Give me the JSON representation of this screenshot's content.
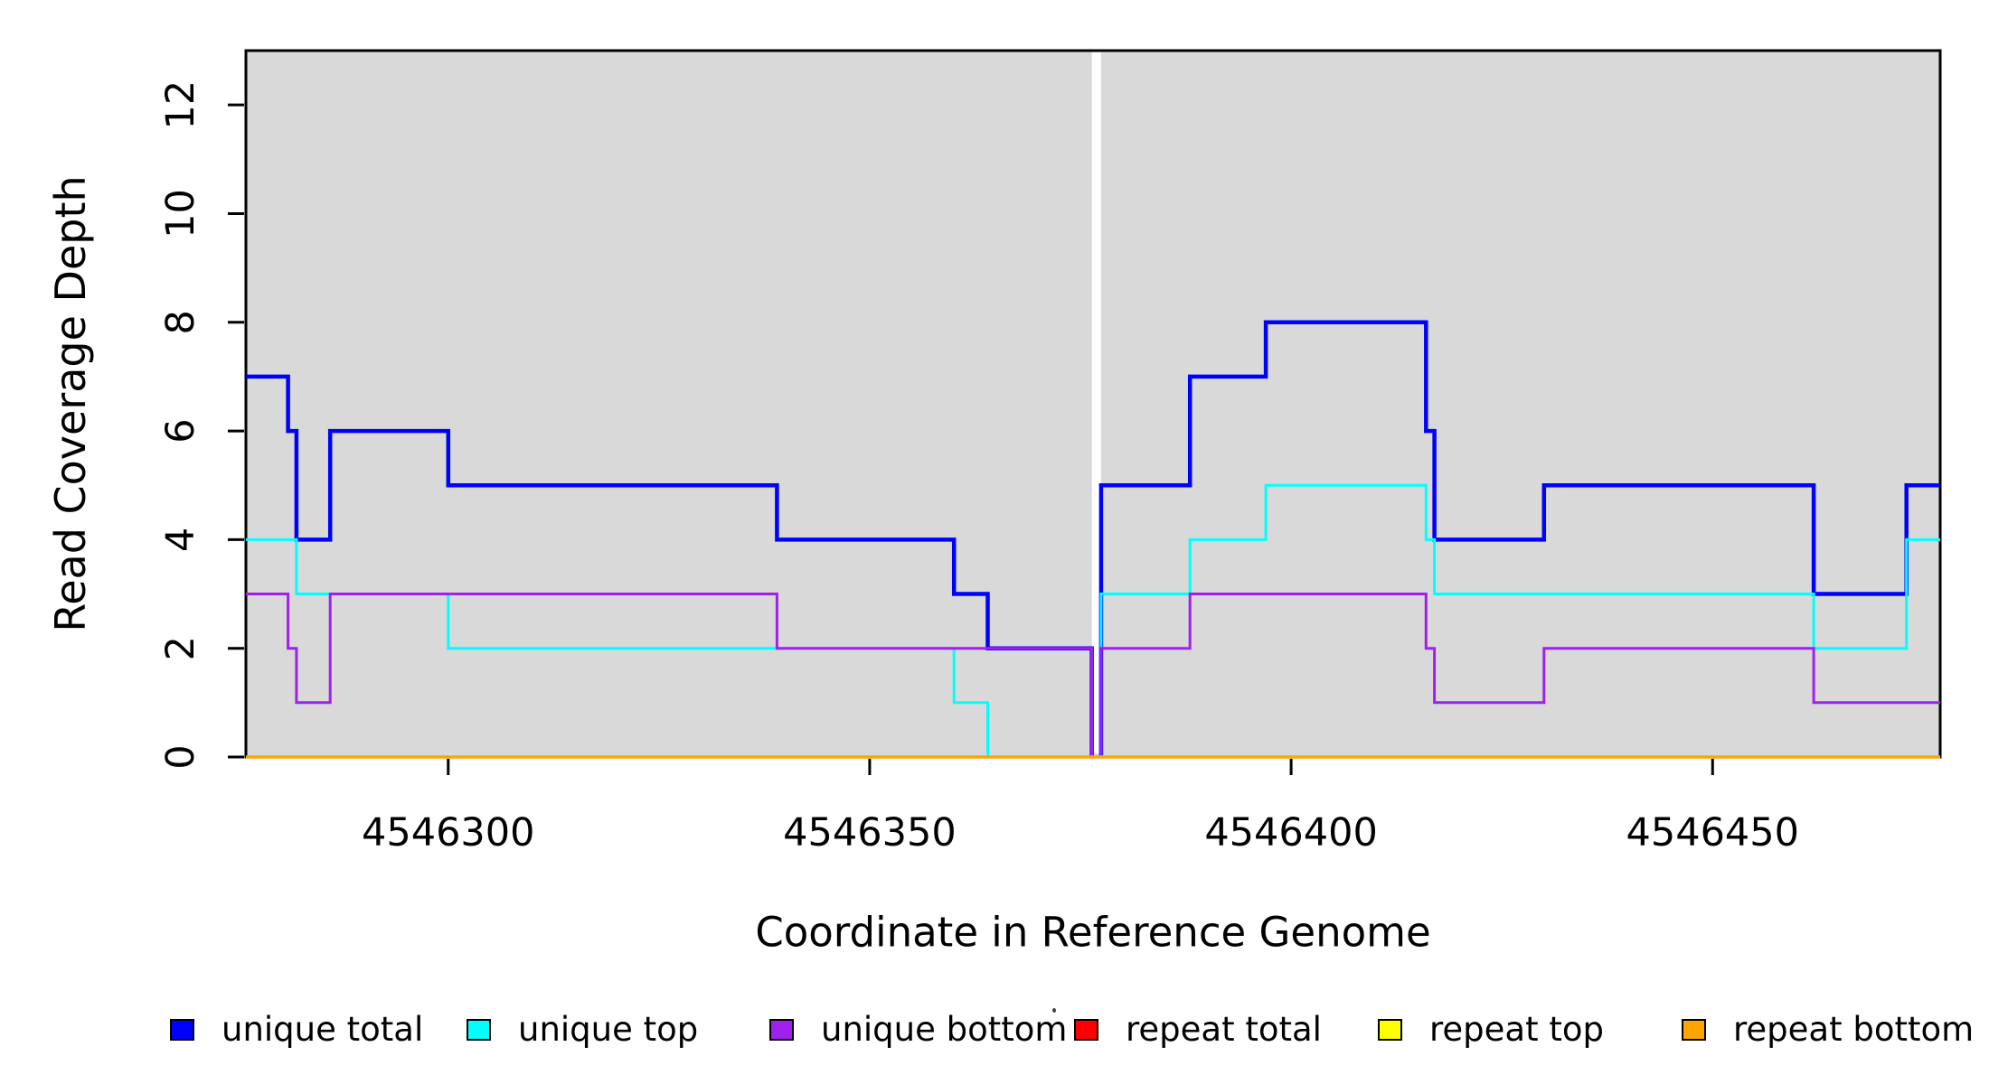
{
  "chart_data": {
    "type": "line",
    "subtype": "step",
    "title": "",
    "xlabel": "Coordinate in Reference Genome",
    "ylabel": "Read Coverage Depth",
    "xlim": [
      4546276,
      4546477
    ],
    "ylim": [
      0,
      13
    ],
    "x_ticks": [
      4546300,
      4546350,
      4546400,
      4546450
    ],
    "y_ticks": [
      0,
      2,
      4,
      6,
      8,
      10,
      12
    ],
    "plot_bg": "#D9D9D9",
    "grid": "off",
    "legend_position": "bottom",
    "gap": {
      "from": 4546376.35,
      "to": 4546377.45
    },
    "series": [
      {
        "name": "unique total",
        "key": "unique-total",
        "color": "#0000FF",
        "lw": 4.5,
        "blocks": [
          {
            "points": [
              [
                4546276,
                7
              ],
              [
                4546281,
                6
              ],
              [
                4546282,
                4
              ],
              [
                4546286,
                6
              ],
              [
                4546300,
                5
              ],
              [
                4546339,
                4
              ],
              [
                4546360,
                3
              ],
              [
                4546364,
                2
              ]
            ],
            "end": 4546376.35,
            "endAtZero": true
          },
          {
            "points": [
              [
                4546377.45,
                5
              ],
              [
                4546388,
                7
              ],
              [
                4546397,
                8
              ],
              [
                4546416,
                6
              ],
              [
                4546417,
                4
              ],
              [
                4546430,
                5
              ],
              [
                4546462,
                3
              ],
              [
                4546473,
                5
              ]
            ],
            "end": 4546477,
            "startAtZero": true
          }
        ]
      },
      {
        "name": "unique top",
        "key": "unique-top",
        "color": "#00FFFF",
        "lw": 3,
        "blocks": [
          {
            "points": [
              [
                4546276,
                4
              ],
              [
                4546282,
                3
              ],
              [
                4546300,
                2
              ],
              [
                4546360,
                1
              ],
              [
                4546364,
                0
              ]
            ],
            "end": 4546376.35
          },
          {
            "points": [
              [
                4546377.45,
                3
              ],
              [
                4546388,
                4
              ],
              [
                4546397,
                5
              ],
              [
                4546416,
                4
              ],
              [
                4546417,
                3
              ],
              [
                4546462,
                2
              ],
              [
                4546473,
                4
              ]
            ],
            "end": 4546477,
            "startAtZero": true
          }
        ]
      },
      {
        "name": "unique bottom",
        "key": "unique-bottom",
        "color": "#A020F0",
        "lw": 3,
        "blocks": [
          {
            "points": [
              [
                4546276,
                3
              ],
              [
                4546281,
                2
              ],
              [
                4546282,
                1
              ],
              [
                4546286,
                3
              ],
              [
                4546339,
                2
              ]
            ],
            "end": 4546376.35,
            "endAtZero": true
          },
          {
            "points": [
              [
                4546377.45,
                2
              ],
              [
                4546388,
                3
              ],
              [
                4546416,
                2
              ],
              [
                4546417,
                1
              ],
              [
                4546430,
                2
              ],
              [
                4546462,
                1
              ]
            ],
            "end": 4546477,
            "startAtZero": true
          }
        ]
      },
      {
        "name": "repeat total",
        "key": "repeat-total",
        "color": "#FF0000",
        "lw": 3,
        "blocks": [
          {
            "points": [
              [
                4546276,
                0
              ]
            ],
            "end": 4546477
          }
        ]
      },
      {
        "name": "repeat top",
        "key": "repeat-top",
        "color": "#FFFF00",
        "lw": 3,
        "blocks": [
          {
            "points": [
              [
                4546276,
                0
              ]
            ],
            "end": 4546477
          }
        ]
      },
      {
        "name": "repeat bottom",
        "key": "repeat-bottom",
        "color": "#FFA500",
        "lw": 3.5,
        "blocks": [
          {
            "points": [
              [
                4546276,
                0
              ]
            ],
            "end": 4546477
          }
        ]
      }
    ]
  }
}
